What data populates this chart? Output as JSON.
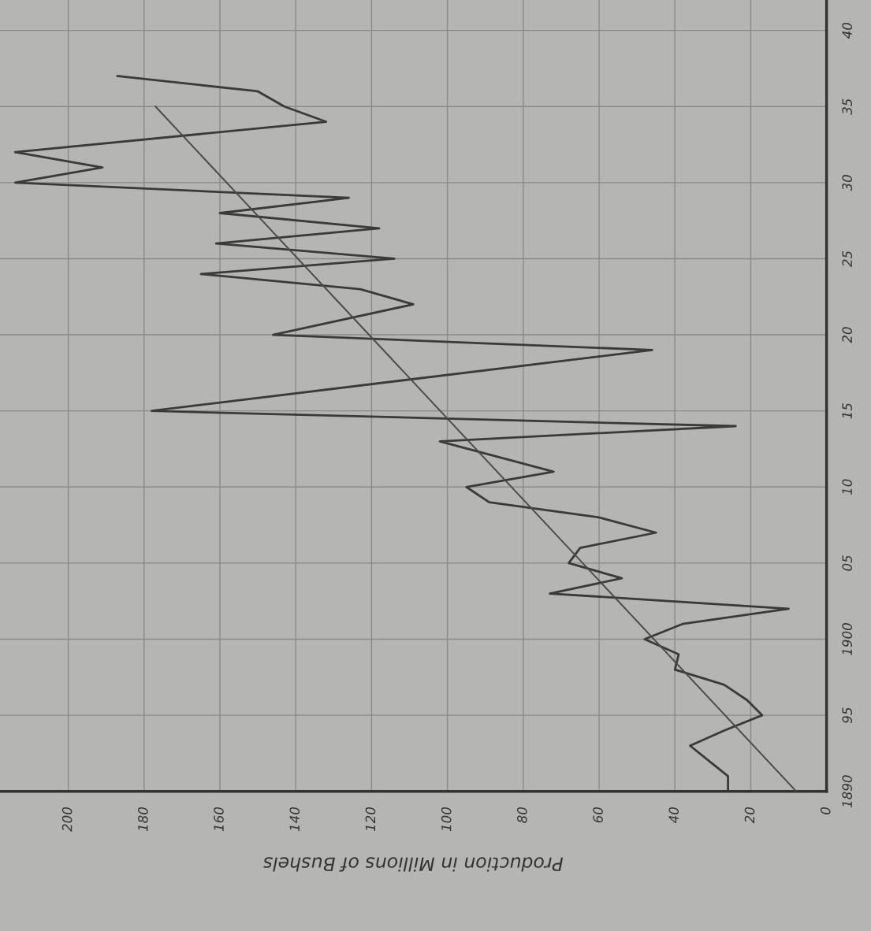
{
  "chart_data": {
    "type": "line",
    "orientation": "horizontal",
    "xlabel": "Production in Millions of Bushels",
    "series": [
      {
        "color": "#3a3a3a",
        "x": [
          1890,
          1891,
          1892,
          1893,
          1894,
          1895,
          1896,
          1897,
          1898,
          1899,
          1900,
          1901,
          1902,
          1903,
          1904,
          1905,
          1906,
          1907,
          1908,
          1909,
          1910,
          1911,
          1913,
          1914,
          1915,
          1919,
          1920,
          1922,
          1923,
          1924,
          1925,
          1926,
          1927,
          1928,
          1929,
          1930,
          1931,
          1932,
          1934,
          1935,
          1936,
          1937
        ],
        "values": [
          26,
          26,
          31,
          36,
          27,
          17,
          21,
          27,
          40,
          39,
          48,
          38,
          10,
          73,
          54,
          68,
          65,
          45,
          60,
          89,
          95,
          72,
          102,
          24,
          178,
          46,
          146,
          109,
          123,
          165,
          114,
          161,
          118,
          160,
          126,
          214,
          191,
          214,
          132,
          143,
          150,
          187
        ]
      },
      {
        "color": "#4a4a4a",
        "x": [
          1890,
          1935
        ],
        "values": [
          8,
          177
        ]
      }
    ],
    "xlim": [
      218,
      0
    ],
    "xticks": [
      0,
      20,
      40,
      60,
      80,
      100,
      120,
      140,
      160,
      180,
      200
    ],
    "ylim": [
      1890,
      1942
    ],
    "yticks": [
      1890,
      {
        "value": 1895,
        "label": "95"
      },
      1900,
      {
        "value": 1905,
        "label": "05"
      },
      {
        "value": 1910,
        "label": "10"
      },
      {
        "value": 1915,
        "label": "15"
      },
      {
        "value": 1920,
        "label": "20"
      },
      {
        "value": 1925,
        "label": "25"
      },
      {
        "value": 1930,
        "label": "30"
      },
      {
        "value": 1935,
        "label": "35"
      },
      {
        "value": 1940,
        "label": "40"
      }
    ],
    "grid": true,
    "line_style": "solid",
    "marker": "none"
  }
}
